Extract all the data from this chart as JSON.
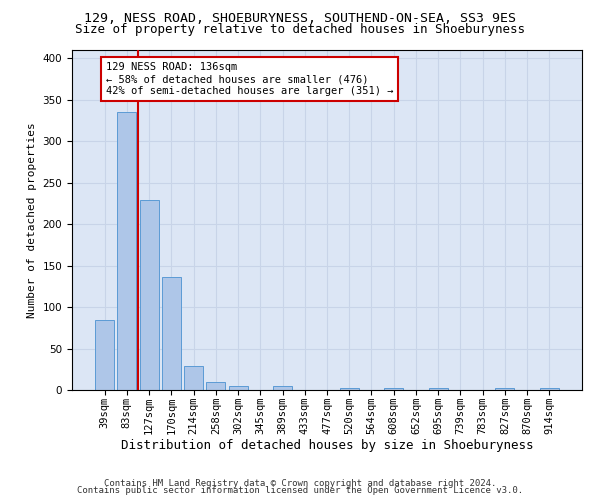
{
  "title1": "129, NESS ROAD, SHOEBURYNESS, SOUTHEND-ON-SEA, SS3 9ES",
  "title2": "Size of property relative to detached houses in Shoeburyness",
  "xlabel": "Distribution of detached houses by size in Shoeburyness",
  "ylabel": "Number of detached properties",
  "bins": [
    "39sqm",
    "83sqm",
    "127sqm",
    "170sqm",
    "214sqm",
    "258sqm",
    "302sqm",
    "345sqm",
    "389sqm",
    "433sqm",
    "477sqm",
    "520sqm",
    "564sqm",
    "608sqm",
    "652sqm",
    "695sqm",
    "739sqm",
    "783sqm",
    "827sqm",
    "870sqm",
    "914sqm"
  ],
  "values": [
    85,
    335,
    229,
    136,
    29,
    10,
    5,
    0,
    5,
    0,
    0,
    3,
    0,
    3,
    0,
    3,
    0,
    0,
    3,
    0,
    3
  ],
  "bar_color": "#aec6e8",
  "bar_edge_color": "#5b9bd5",
  "vline_color": "#cc0000",
  "annotation_text": "129 NESS ROAD: 136sqm\n← 58% of detached houses are smaller (476)\n42% of semi-detached houses are larger (351) →",
  "annotation_box_color": "#ffffff",
  "annotation_box_edge": "#cc0000",
  "grid_color": "#c8d4e8",
  "bg_color": "#dce6f5",
  "footer1": "Contains HM Land Registry data © Crown copyright and database right 2024.",
  "footer2": "Contains public sector information licensed under the Open Government Licence v3.0.",
  "ylim": [
    0,
    410
  ],
  "yticks": [
    0,
    50,
    100,
    150,
    200,
    250,
    300,
    350,
    400
  ],
  "title1_fontsize": 9.5,
  "title2_fontsize": 9,
  "xlabel_fontsize": 9,
  "ylabel_fontsize": 8,
  "tick_fontsize": 7.5,
  "footer_fontsize": 6.5,
  "ann_fontsize": 7.5
}
